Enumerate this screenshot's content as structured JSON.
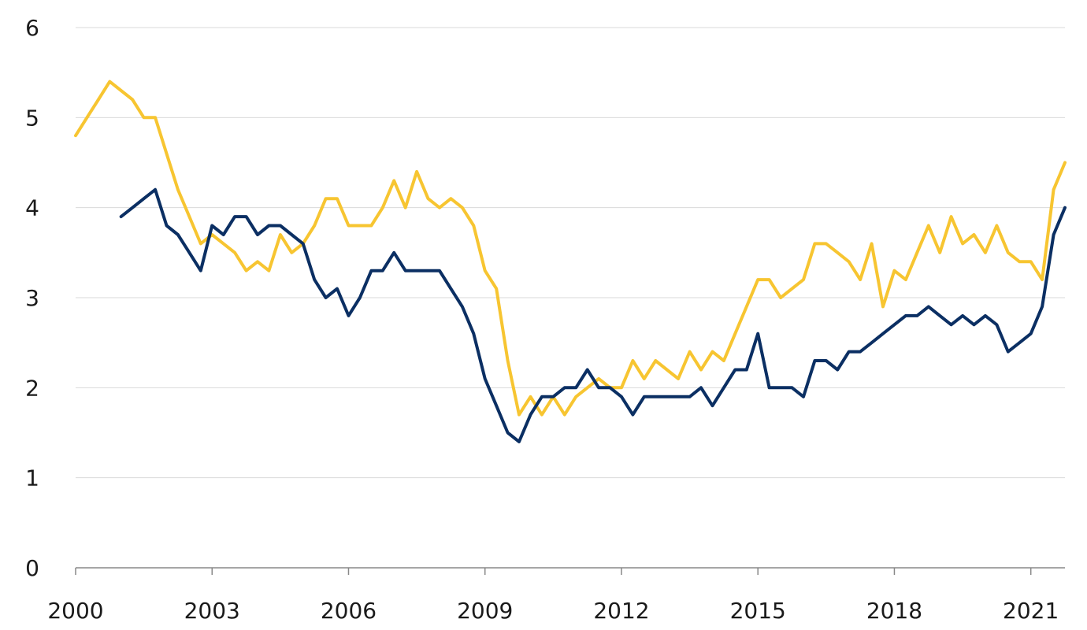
{
  "chart_data": {
    "type": "line",
    "title": "",
    "xlabel": "",
    "ylabel": "",
    "ylim": [
      0,
      6
    ],
    "xlim": [
      2000,
      2021.75
    ],
    "y_ticks": [
      0,
      1,
      2,
      3,
      4,
      5,
      6
    ],
    "x_ticks": [
      2000,
      2003,
      2006,
      2009,
      2012,
      2015,
      2018,
      2021
    ],
    "x_tick_labels": [
      "2000",
      "2003",
      "2006",
      "2009",
      "2012",
      "2015",
      "2018",
      "2021"
    ],
    "y_tick_labels": [
      "0",
      "1",
      "2",
      "3",
      "4",
      "5",
      "6"
    ],
    "grid": true,
    "legend": "none",
    "series": [
      {
        "color": "#f7c531",
        "x": [
          2000.0,
          2000.25,
          2000.5,
          2000.75,
          2001.0,
          2001.25,
          2001.5,
          2001.75,
          2002.0,
          2002.25,
          2002.5,
          2002.75,
          2003.0,
          2003.25,
          2003.5,
          2003.75,
          2004.0,
          2004.25,
          2004.5,
          2004.75,
          2005.0,
          2005.25,
          2005.5,
          2005.75,
          2006.0,
          2006.25,
          2006.5,
          2006.75,
          2007.0,
          2007.25,
          2007.5,
          2007.75,
          2008.0,
          2008.25,
          2008.5,
          2008.75,
          2009.0,
          2009.25,
          2009.5,
          2009.75,
          2010.0,
          2010.25,
          2010.5,
          2010.75,
          2011.0,
          2011.25,
          2011.5,
          2011.75,
          2012.0,
          2012.25,
          2012.5,
          2012.75,
          2013.0,
          2013.25,
          2013.5,
          2013.75,
          2014.0,
          2014.25,
          2014.5,
          2014.75,
          2015.0,
          2015.25,
          2015.5,
          2015.75,
          2016.0,
          2016.25,
          2016.5,
          2016.75,
          2017.0,
          2017.25,
          2017.5,
          2017.75,
          2018.0,
          2018.25,
          2018.5,
          2018.75,
          2019.0,
          2019.25,
          2019.5,
          2019.75,
          2020.0,
          2020.25,
          2020.5,
          2020.75,
          2021.0,
          2021.25,
          2021.5,
          2021.75
        ],
        "values": [
          4.8,
          5.0,
          5.2,
          5.4,
          5.3,
          5.2,
          5.0,
          5.0,
          4.6,
          4.2,
          3.9,
          3.6,
          3.7,
          3.6,
          3.5,
          3.3,
          3.4,
          3.3,
          3.7,
          3.5,
          3.6,
          3.8,
          4.1,
          4.1,
          3.8,
          3.8,
          3.8,
          4.0,
          4.3,
          4.0,
          4.4,
          4.1,
          4.0,
          4.1,
          4.0,
          3.8,
          3.3,
          3.1,
          2.3,
          1.7,
          1.9,
          1.7,
          1.9,
          1.7,
          1.9,
          2.0,
          2.1,
          2.0,
          2.0,
          2.3,
          2.1,
          2.3,
          2.2,
          2.1,
          2.4,
          2.2,
          2.4,
          2.3,
          2.6,
          2.9,
          3.2,
          3.2,
          3.0,
          3.1,
          3.2,
          3.6,
          3.6,
          3.5,
          3.4,
          3.2,
          3.6,
          2.9,
          3.3,
          3.2,
          3.5,
          3.8,
          3.5,
          3.9,
          3.6,
          3.7,
          3.5,
          3.8,
          3.5,
          3.4,
          3.4,
          3.2,
          4.2,
          4.5
        ]
      },
      {
        "color": "#0b2f63",
        "x": [
          2001.0,
          2001.25,
          2001.5,
          2001.75,
          2002.0,
          2002.25,
          2002.5,
          2002.75,
          2003.0,
          2003.25,
          2003.5,
          2003.75,
          2004.0,
          2004.25,
          2004.5,
          2004.75,
          2005.0,
          2005.25,
          2005.5,
          2005.75,
          2006.0,
          2006.25,
          2006.5,
          2006.75,
          2007.0,
          2007.25,
          2007.5,
          2007.75,
          2008.0,
          2008.25,
          2008.5,
          2008.75,
          2009.0,
          2009.25,
          2009.5,
          2009.75,
          2010.0,
          2010.25,
          2010.5,
          2010.75,
          2011.0,
          2011.25,
          2011.5,
          2011.75,
          2012.0,
          2012.25,
          2012.5,
          2012.75,
          2013.0,
          2013.25,
          2013.5,
          2013.75,
          2014.0,
          2014.25,
          2014.5,
          2014.75,
          2015.0,
          2015.25,
          2015.5,
          2015.75,
          2016.0,
          2016.25,
          2016.5,
          2016.75,
          2017.0,
          2017.25,
          2017.5,
          2017.75,
          2018.0,
          2018.25,
          2018.5,
          2018.75,
          2019.0,
          2019.25,
          2019.5,
          2019.75,
          2020.0,
          2020.25,
          2020.5,
          2020.75,
          2021.0,
          2021.25,
          2021.5,
          2021.75
        ],
        "values": [
          3.9,
          4.0,
          4.1,
          4.2,
          3.8,
          3.7,
          3.5,
          3.3,
          3.8,
          3.7,
          3.9,
          3.9,
          3.7,
          3.8,
          3.8,
          3.7,
          3.6,
          3.2,
          3.0,
          3.1,
          2.8,
          3.0,
          3.3,
          3.3,
          3.5,
          3.3,
          3.3,
          3.3,
          3.3,
          3.1,
          2.9,
          2.6,
          2.1,
          1.8,
          1.5,
          1.4,
          1.7,
          1.9,
          1.9,
          2.0,
          2.0,
          2.2,
          2.0,
          2.0,
          1.9,
          1.7,
          1.9,
          1.9,
          1.9,
          1.9,
          1.9,
          2.0,
          1.8,
          2.0,
          2.2,
          2.2,
          2.6,
          2.0,
          2.0,
          2.0,
          1.9,
          2.3,
          2.3,
          2.2,
          2.4,
          2.4,
          2.5,
          2.6,
          2.7,
          2.8,
          2.8,
          2.9,
          2.8,
          2.7,
          2.8,
          2.7,
          2.8,
          2.7,
          2.4,
          2.5,
          2.6,
          2.9,
          3.7,
          4.0
        ]
      }
    ]
  }
}
